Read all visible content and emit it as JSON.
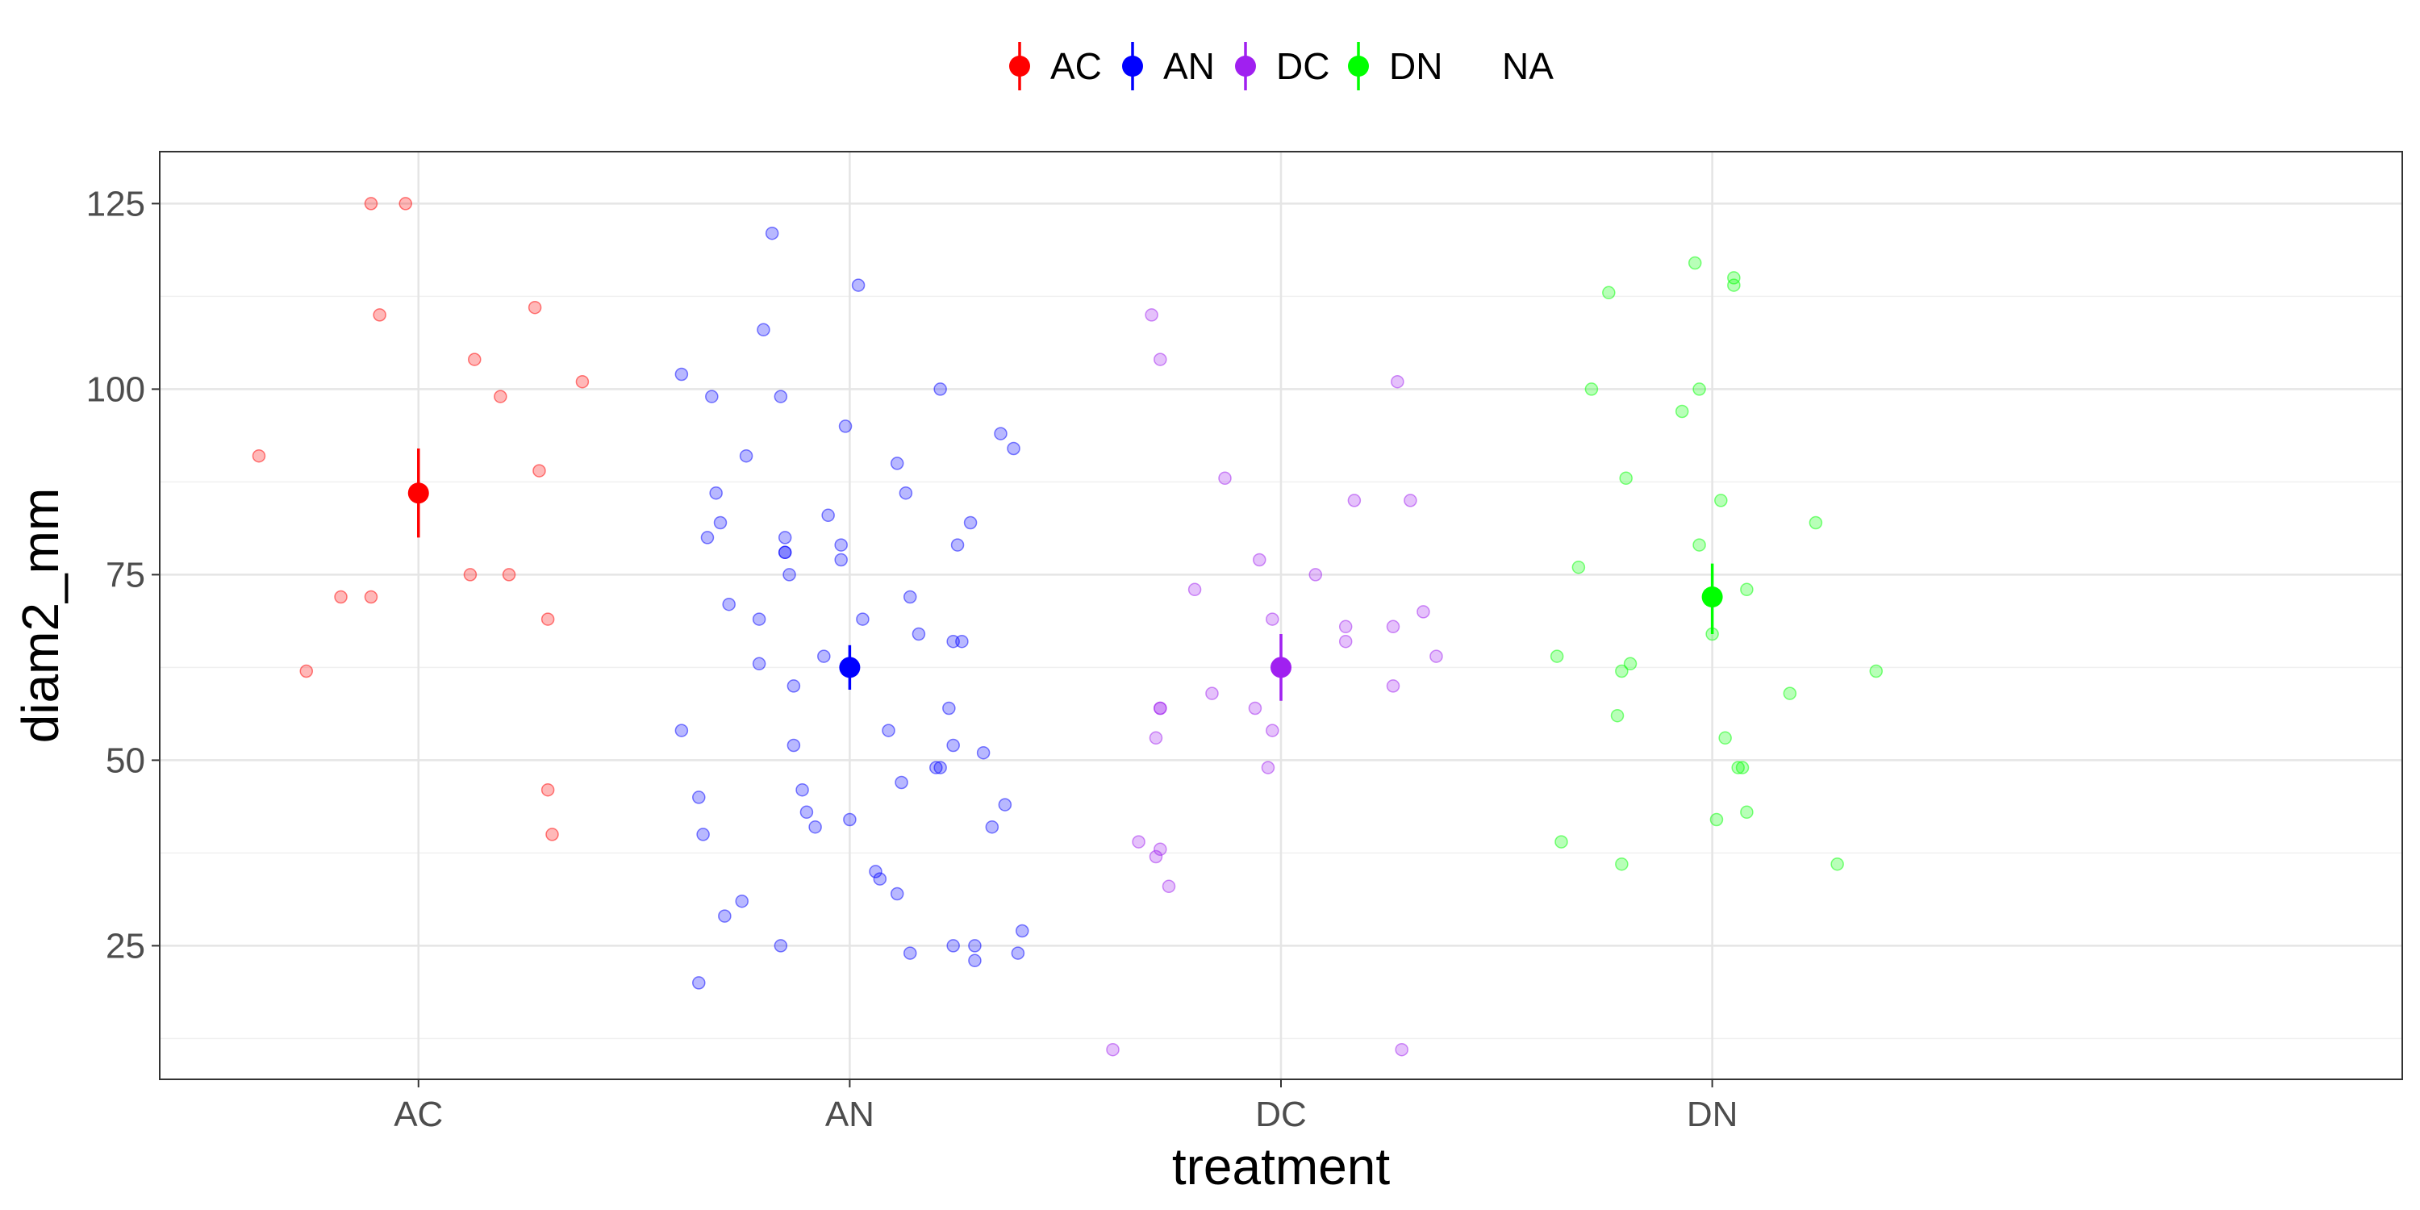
{
  "chart_data": {
    "type": "scatter",
    "title": "",
    "xlabel": "treatment",
    "ylabel": "diam2_mm",
    "categories": [
      "AC",
      "AN",
      "DC",
      "DN"
    ],
    "x_range": [
      0.4,
      5.6
    ],
    "ylim": [
      7,
      132
    ],
    "yticks": [
      25,
      50,
      75,
      100,
      125
    ],
    "grid": true,
    "legend_position": "top",
    "legend": [
      {
        "label": "AC",
        "color": "#ff0000",
        "has_marker": true
      },
      {
        "label": "AN",
        "color": "#0000ff",
        "has_marker": true
      },
      {
        "label": "DC",
        "color": "#a020f0",
        "has_marker": true
      },
      {
        "label": "DN",
        "color": "#00ff00",
        "has_marker": true
      },
      {
        "label": "NA",
        "color": "#000000",
        "has_marker": false
      }
    ],
    "series": [
      {
        "name": "AC",
        "color": "#ff0000",
        "mean": 86,
        "error": [
          80,
          92
        ],
        "points": [
          [
            0.63,
            91
          ],
          [
            0.74,
            62
          ],
          [
            0.82,
            72
          ],
          [
            0.89,
            125
          ],
          [
            0.89,
            72
          ],
          [
            0.91,
            110
          ],
          [
            0.97,
            125
          ],
          [
            1.12,
            75
          ],
          [
            1.13,
            104
          ],
          [
            1.19,
            99
          ],
          [
            1.21,
            75
          ],
          [
            1.27,
            111
          ],
          [
            1.28,
            89
          ],
          [
            1.3,
            69
          ],
          [
            1.3,
            46
          ],
          [
            1.31,
            40
          ],
          [
            1.38,
            101
          ]
        ]
      },
      {
        "name": "AN",
        "color": "#0000ff",
        "mean": 62.5,
        "error": [
          59.5,
          65.5
        ],
        "points": [
          [
            1.61,
            102
          ],
          [
            1.61,
            54
          ],
          [
            1.65,
            20
          ],
          [
            1.65,
            45
          ],
          [
            1.66,
            40
          ],
          [
            1.67,
            80
          ],
          [
            1.68,
            99
          ],
          [
            1.69,
            86
          ],
          [
            1.7,
            82
          ],
          [
            1.71,
            29
          ],
          [
            1.72,
            71
          ],
          [
            1.75,
            31
          ],
          [
            1.76,
            91
          ],
          [
            1.79,
            63
          ],
          [
            1.79,
            69
          ],
          [
            1.8,
            108
          ],
          [
            1.82,
            121
          ],
          [
            1.84,
            25
          ],
          [
            1.84,
            99
          ],
          [
            1.85,
            80
          ],
          [
            1.85,
            78
          ],
          [
            1.85,
            78
          ],
          [
            1.86,
            75
          ],
          [
            1.87,
            60
          ],
          [
            1.87,
            52
          ],
          [
            1.89,
            46
          ],
          [
            1.9,
            43
          ],
          [
            1.92,
            41
          ],
          [
            1.94,
            64
          ],
          [
            1.95,
            83
          ],
          [
            1.98,
            79
          ],
          [
            1.98,
            77
          ],
          [
            1.99,
            95
          ],
          [
            2.0,
            42
          ],
          [
            2.02,
            114
          ],
          [
            2.03,
            69
          ],
          [
            2.06,
            35
          ],
          [
            2.07,
            34
          ],
          [
            2.09,
            54
          ],
          [
            2.11,
            90
          ],
          [
            2.11,
            32
          ],
          [
            2.12,
            47
          ],
          [
            2.13,
            86
          ],
          [
            2.14,
            24
          ],
          [
            2.14,
            72
          ],
          [
            2.16,
            67
          ],
          [
            2.2,
            49
          ],
          [
            2.21,
            49
          ],
          [
            2.21,
            100
          ],
          [
            2.23,
            57
          ],
          [
            2.24,
            66
          ],
          [
            2.24,
            52
          ],
          [
            2.24,
            25
          ],
          [
            2.25,
            79
          ],
          [
            2.26,
            66
          ],
          [
            2.28,
            82
          ],
          [
            2.29,
            23
          ],
          [
            2.29,
            25
          ],
          [
            2.31,
            51
          ],
          [
            2.33,
            41
          ],
          [
            2.35,
            94
          ],
          [
            2.36,
            44
          ],
          [
            2.38,
            92
          ],
          [
            2.39,
            24
          ],
          [
            2.4,
            27
          ]
        ]
      },
      {
        "name": "DC",
        "color": "#a020f0",
        "mean": 62.5,
        "error": [
          58,
          67
        ],
        "points": [
          [
            2.61,
            11
          ],
          [
            2.67,
            39
          ],
          [
            2.7,
            110
          ],
          [
            2.71,
            37
          ],
          [
            2.71,
            53
          ],
          [
            2.72,
            57
          ],
          [
            2.72,
            57
          ],
          [
            2.72,
            104
          ],
          [
            2.72,
            38
          ],
          [
            2.74,
            33
          ],
          [
            2.8,
            73
          ],
          [
            2.84,
            59
          ],
          [
            2.87,
            88
          ],
          [
            2.94,
            57
          ],
          [
            2.95,
            77
          ],
          [
            2.97,
            49
          ],
          [
            2.98,
            69
          ],
          [
            2.98,
            54
          ],
          [
            3.08,
            75
          ],
          [
            3.15,
            66
          ],
          [
            3.15,
            68
          ],
          [
            3.17,
            85
          ],
          [
            3.26,
            68
          ],
          [
            3.26,
            60
          ],
          [
            3.27,
            101
          ],
          [
            3.28,
            11
          ],
          [
            3.3,
            85
          ],
          [
            3.33,
            70
          ],
          [
            3.36,
            64
          ]
        ]
      },
      {
        "name": "DN",
        "color": "#00ff00",
        "mean": 72,
        "error": [
          67,
          76.5
        ],
        "points": [
          [
            3.64,
            64
          ],
          [
            3.65,
            39
          ],
          [
            3.69,
            76
          ],
          [
            3.72,
            100
          ],
          [
            3.76,
            113
          ],
          [
            3.78,
            56
          ],
          [
            3.79,
            62
          ],
          [
            3.79,
            36
          ],
          [
            3.8,
            88
          ],
          [
            3.81,
            63
          ],
          [
            3.93,
            97
          ],
          [
            3.96,
            117
          ],
          [
            3.97,
            79
          ],
          [
            3.97,
            100
          ],
          [
            4.0,
            67
          ],
          [
            4.01,
            42
          ],
          [
            4.02,
            85
          ],
          [
            4.03,
            53
          ],
          [
            4.05,
            114
          ],
          [
            4.05,
            115
          ],
          [
            4.06,
            49
          ],
          [
            4.07,
            49
          ],
          [
            4.08,
            43
          ],
          [
            4.08,
            73
          ],
          [
            4.18,
            59
          ],
          [
            4.24,
            82
          ],
          [
            4.29,
            36
          ],
          [
            4.38,
            62
          ]
        ]
      }
    ]
  }
}
